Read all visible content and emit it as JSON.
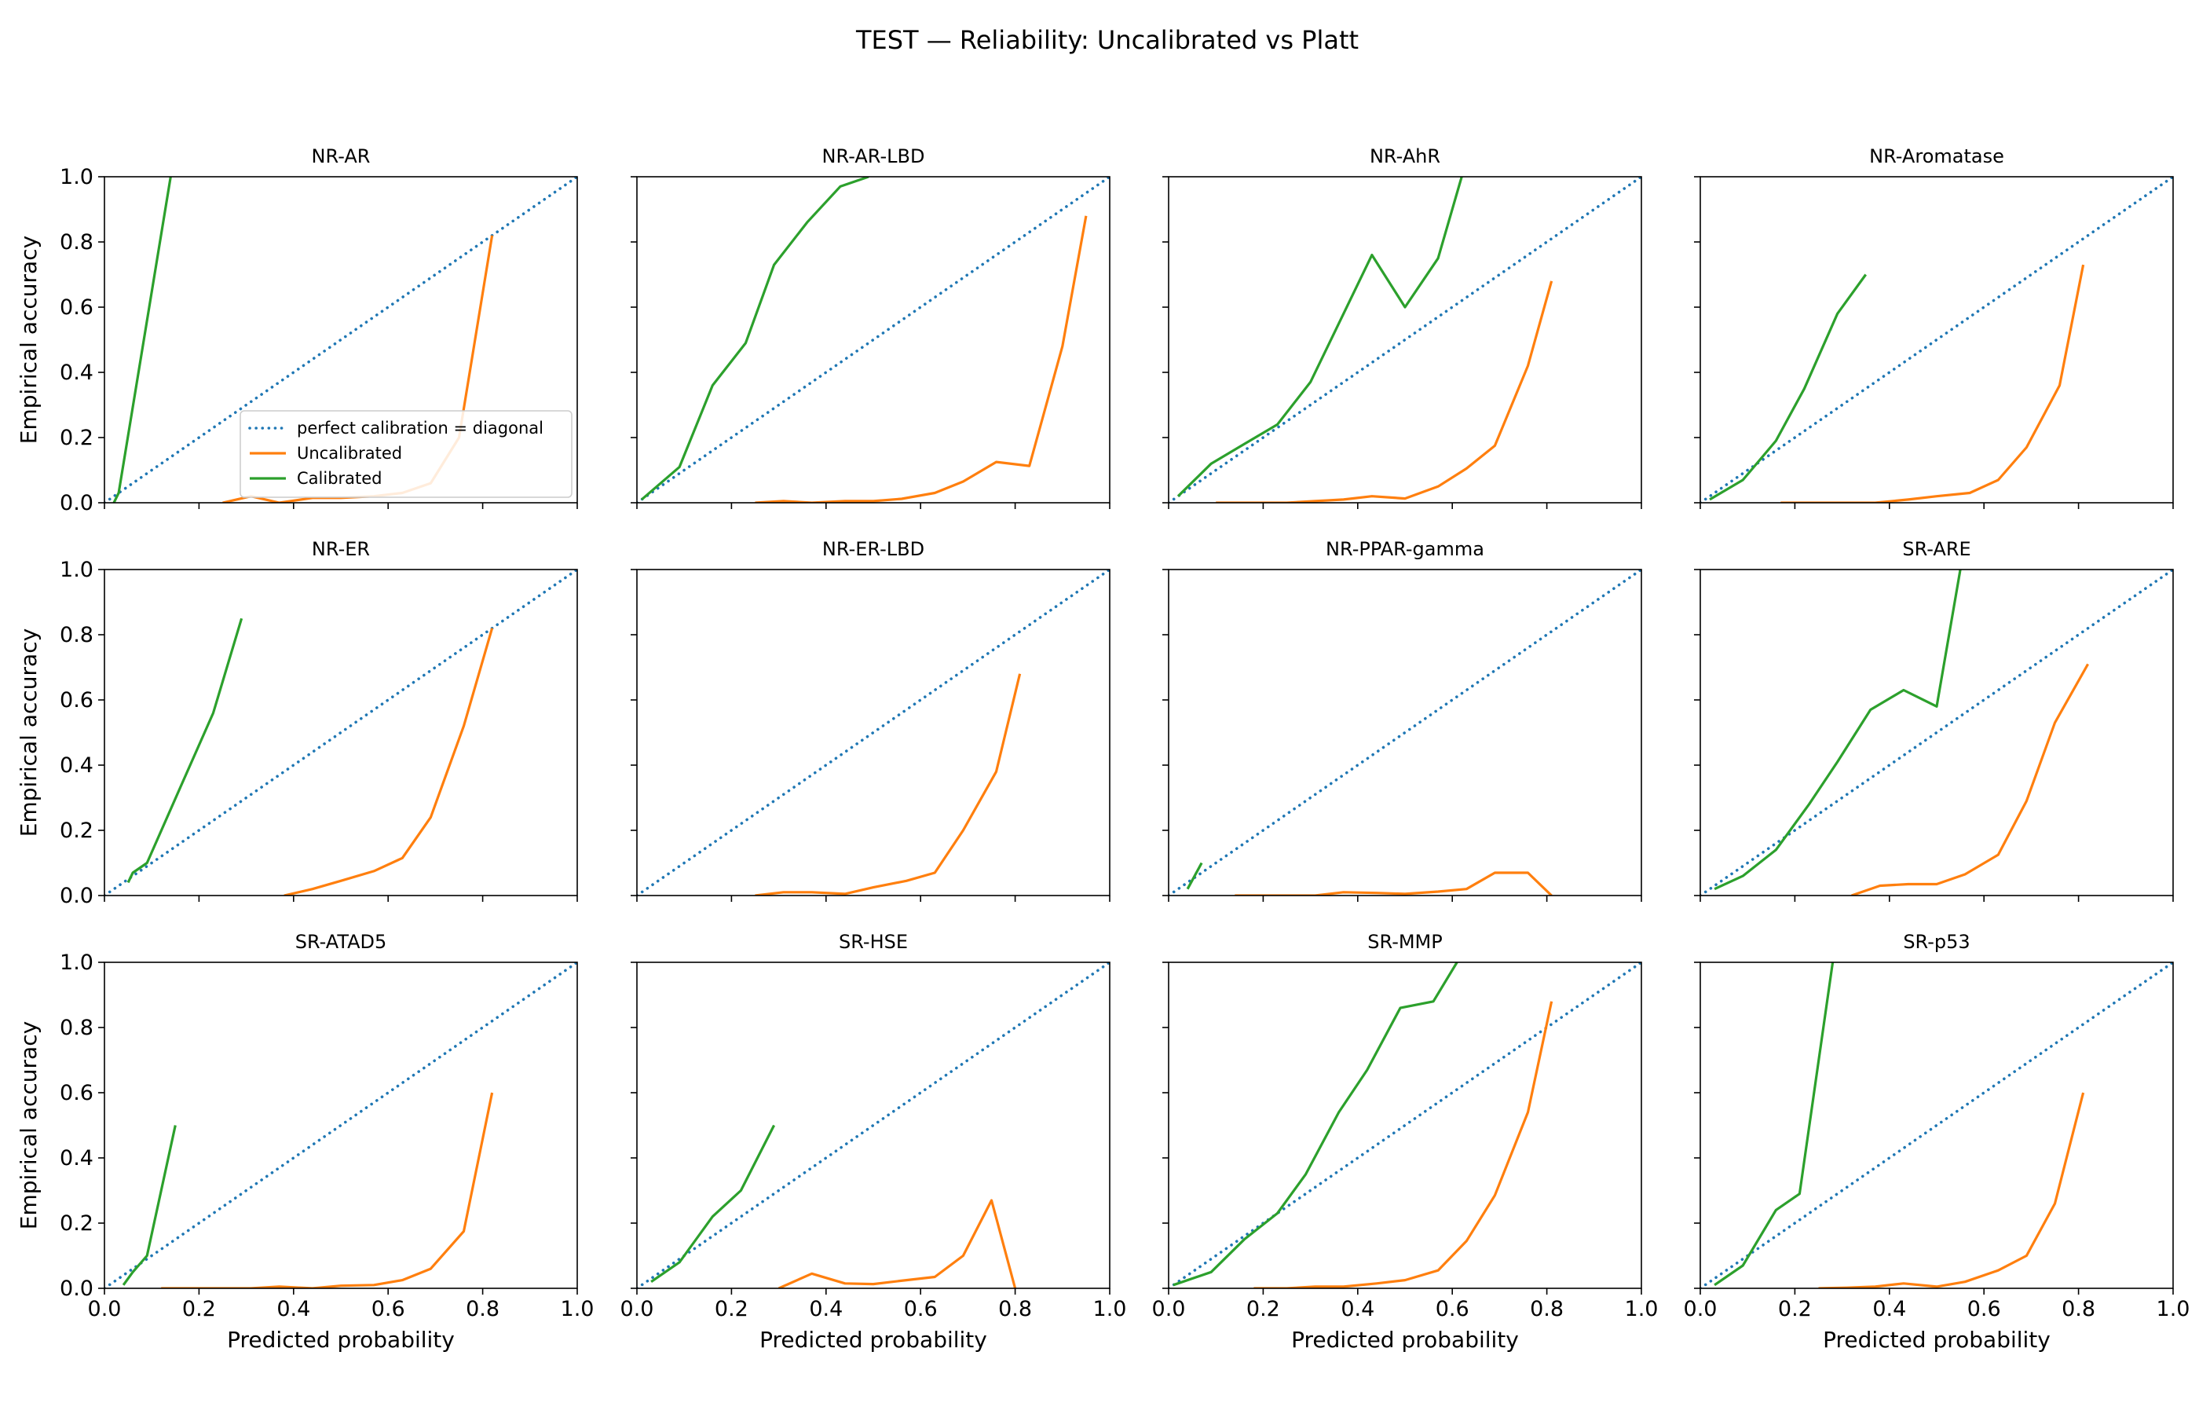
{
  "title": "TEST — Reliability: Uncalibrated vs Platt",
  "xlabel": "Predicted probability",
  "ylabel": "Empirical accuracy",
  "colors": {
    "diagonal": "#1f77b4",
    "uncalibrated": "#ff7f0e",
    "calibrated": "#2ca02c"
  },
  "legend": {
    "placement": "lower-right of first panel",
    "entries": [
      "perfect calibration = diagonal",
      "Uncalibrated",
      "Calibrated"
    ]
  },
  "chart_data": {
    "type": "line",
    "grid": false,
    "layout": "3x4 small multiples",
    "xlim": [
      0,
      1
    ],
    "ylim": [
      0,
      1
    ],
    "xticks": [
      "0.0",
      "0.2",
      "0.4",
      "0.6",
      "0.8",
      "1.0"
    ],
    "yticks": [
      "0.0",
      "0.2",
      "0.4",
      "0.6",
      "0.8",
      "1.0"
    ],
    "series_names": [
      "perfect calibration = diagonal",
      "Uncalibrated",
      "Calibrated"
    ],
    "panels": [
      {
        "title": "NR-AR",
        "diagonal": [
          [
            0,
            0
          ],
          [
            1,
            1
          ]
        ],
        "uncalibrated": [
          [
            0.25,
            0.0
          ],
          [
            0.31,
            0.02
          ],
          [
            0.37,
            0.0
          ],
          [
            0.44,
            0.015
          ],
          [
            0.5,
            0.015
          ],
          [
            0.57,
            0.02
          ],
          [
            0.63,
            0.03
          ],
          [
            0.69,
            0.06
          ],
          [
            0.75,
            0.2
          ],
          [
            0.82,
            0.82
          ]
        ],
        "calibrated": [
          [
            0.02,
            0.0
          ],
          [
            0.03,
            0.03
          ],
          [
            0.14,
            1.0
          ]
        ]
      },
      {
        "title": "NR-AR-LBD",
        "diagonal": [
          [
            0,
            0
          ],
          [
            1,
            1
          ]
        ],
        "uncalibrated": [
          [
            0.25,
            0.0
          ],
          [
            0.31,
            0.005
          ],
          [
            0.37,
            0.0
          ],
          [
            0.44,
            0.005
          ],
          [
            0.5,
            0.005
          ],
          [
            0.56,
            0.012
          ],
          [
            0.63,
            0.03
          ],
          [
            0.69,
            0.065
          ],
          [
            0.76,
            0.125
          ],
          [
            0.83,
            0.113
          ],
          [
            0.9,
            0.48
          ],
          [
            0.95,
            0.88
          ]
        ],
        "calibrated": [
          [
            0.01,
            0.01
          ],
          [
            0.09,
            0.11
          ],
          [
            0.16,
            0.36
          ],
          [
            0.23,
            0.49
          ],
          [
            0.29,
            0.73
          ],
          [
            0.36,
            0.86
          ],
          [
            0.43,
            0.97
          ],
          [
            0.49,
            1.0
          ]
        ]
      },
      {
        "title": "NR-AhR",
        "diagonal": [
          [
            0,
            0
          ],
          [
            1,
            1
          ]
        ],
        "uncalibrated": [
          [
            0.1,
            0.0
          ],
          [
            0.18,
            0.0
          ],
          [
            0.25,
            0.0
          ],
          [
            0.31,
            0.005
          ],
          [
            0.37,
            0.01
          ],
          [
            0.43,
            0.02
          ],
          [
            0.5,
            0.013
          ],
          [
            0.57,
            0.05
          ],
          [
            0.63,
            0.105
          ],
          [
            0.69,
            0.175
          ],
          [
            0.76,
            0.42
          ],
          [
            0.81,
            0.68
          ]
        ],
        "calibrated": [
          [
            0.02,
            0.02
          ],
          [
            0.09,
            0.12
          ],
          [
            0.16,
            0.18
          ],
          [
            0.23,
            0.24
          ],
          [
            0.3,
            0.37
          ],
          [
            0.36,
            0.55
          ],
          [
            0.43,
            0.76
          ],
          [
            0.5,
            0.6
          ],
          [
            0.57,
            0.75
          ],
          [
            0.62,
            1.0
          ]
        ]
      },
      {
        "title": "NR-Aromatase",
        "diagonal": [
          [
            0,
            0
          ],
          [
            1,
            1
          ]
        ],
        "uncalibrated": [
          [
            0.17,
            0.0
          ],
          [
            0.25,
            0.0
          ],
          [
            0.31,
            0.0
          ],
          [
            0.37,
            0.0
          ],
          [
            0.44,
            0.01
          ],
          [
            0.5,
            0.02
          ],
          [
            0.57,
            0.03
          ],
          [
            0.63,
            0.07
          ],
          [
            0.69,
            0.17
          ],
          [
            0.76,
            0.36
          ],
          [
            0.81,
            0.73
          ]
        ],
        "calibrated": [
          [
            0.02,
            0.01
          ],
          [
            0.09,
            0.07
          ],
          [
            0.16,
            0.19
          ],
          [
            0.22,
            0.35
          ],
          [
            0.29,
            0.58
          ],
          [
            0.35,
            0.7
          ]
        ]
      },
      {
        "title": "NR-ER",
        "diagonal": [
          [
            0,
            0
          ],
          [
            1,
            1
          ]
        ],
        "uncalibrated": [
          [
            0.38,
            0.0
          ],
          [
            0.44,
            0.02
          ],
          [
            0.5,
            0.045
          ],
          [
            0.57,
            0.075
          ],
          [
            0.63,
            0.115
          ],
          [
            0.69,
            0.24
          ],
          [
            0.76,
            0.52
          ],
          [
            0.82,
            0.82
          ]
        ],
        "calibrated": [
          [
            0.05,
            0.04
          ],
          [
            0.06,
            0.07
          ],
          [
            0.09,
            0.1
          ],
          [
            0.16,
            0.33
          ],
          [
            0.23,
            0.56
          ],
          [
            0.29,
            0.85
          ]
        ]
      },
      {
        "title": "NR-ER-LBD",
        "diagonal": [
          [
            0,
            0
          ],
          [
            1,
            1
          ]
        ],
        "uncalibrated": [
          [
            0.25,
            0.0
          ],
          [
            0.31,
            0.01
          ],
          [
            0.37,
            0.01
          ],
          [
            0.44,
            0.005
          ],
          [
            0.5,
            0.025
          ],
          [
            0.57,
            0.045
          ],
          [
            0.63,
            0.07
          ],
          [
            0.69,
            0.2
          ],
          [
            0.76,
            0.38
          ],
          [
            0.81,
            0.68
          ]
        ],
        "calibrated": []
      },
      {
        "title": "NR-PPAR-gamma",
        "diagonal": [
          [
            0,
            0
          ],
          [
            1,
            1
          ]
        ],
        "uncalibrated": [
          [
            0.14,
            0.0
          ],
          [
            0.25,
            0.0
          ],
          [
            0.31,
            0.0
          ],
          [
            0.37,
            0.01
          ],
          [
            0.44,
            0.008
          ],
          [
            0.5,
            0.005
          ],
          [
            0.57,
            0.012
          ],
          [
            0.63,
            0.02
          ],
          [
            0.69,
            0.07
          ],
          [
            0.76,
            0.07
          ],
          [
            0.81,
            0.0
          ]
        ],
        "calibrated": [
          [
            0.04,
            0.02
          ],
          [
            0.07,
            0.1
          ]
        ]
      },
      {
        "title": "SR-ARE",
        "diagonal": [
          [
            0,
            0
          ],
          [
            1,
            1
          ]
        ],
        "uncalibrated": [
          [
            0.32,
            0.0
          ],
          [
            0.38,
            0.03
          ],
          [
            0.44,
            0.035
          ],
          [
            0.5,
            0.035
          ],
          [
            0.56,
            0.065
          ],
          [
            0.63,
            0.125
          ],
          [
            0.69,
            0.29
          ],
          [
            0.75,
            0.53
          ],
          [
            0.82,
            0.71
          ]
        ],
        "calibrated": [
          [
            0.03,
            0.02
          ],
          [
            0.09,
            0.06
          ],
          [
            0.16,
            0.14
          ],
          [
            0.23,
            0.28
          ],
          [
            0.29,
            0.41
          ],
          [
            0.36,
            0.57
          ],
          [
            0.43,
            0.63
          ],
          [
            0.5,
            0.58
          ],
          [
            0.55,
            1.0
          ]
        ]
      },
      {
        "title": "SR-ATAD5",
        "diagonal": [
          [
            0,
            0
          ],
          [
            1,
            1
          ]
        ],
        "uncalibrated": [
          [
            0.12,
            0.0
          ],
          [
            0.31,
            0.0
          ],
          [
            0.37,
            0.005
          ],
          [
            0.44,
            0.0
          ],
          [
            0.5,
            0.008
          ],
          [
            0.57,
            0.01
          ],
          [
            0.63,
            0.025
          ],
          [
            0.69,
            0.06
          ],
          [
            0.76,
            0.175
          ],
          [
            0.82,
            0.6
          ]
        ],
        "calibrated": [
          [
            0.04,
            0.01
          ],
          [
            0.06,
            0.05
          ],
          [
            0.09,
            0.1
          ],
          [
            0.15,
            0.5
          ]
        ]
      },
      {
        "title": "SR-HSE",
        "diagonal": [
          [
            0,
            0
          ],
          [
            1,
            1
          ]
        ],
        "uncalibrated": [
          [
            0.3,
            0.0
          ],
          [
            0.37,
            0.045
          ],
          [
            0.44,
            0.015
          ],
          [
            0.5,
            0.013
          ],
          [
            0.57,
            0.025
          ],
          [
            0.63,
            0.035
          ],
          [
            0.69,
            0.1
          ],
          [
            0.75,
            0.27
          ],
          [
            0.8,
            0.0
          ]
        ],
        "calibrated": [
          [
            0.03,
            0.02
          ],
          [
            0.09,
            0.08
          ],
          [
            0.16,
            0.22
          ],
          [
            0.22,
            0.3
          ],
          [
            0.29,
            0.5
          ]
        ]
      },
      {
        "title": "SR-MMP",
        "diagonal": [
          [
            0,
            0
          ],
          [
            1,
            1
          ]
        ],
        "uncalibrated": [
          [
            0.18,
            0.0
          ],
          [
            0.25,
            0.0
          ],
          [
            0.31,
            0.005
          ],
          [
            0.37,
            0.005
          ],
          [
            0.44,
            0.015
          ],
          [
            0.5,
            0.025
          ],
          [
            0.57,
            0.055
          ],
          [
            0.63,
            0.145
          ],
          [
            0.69,
            0.285
          ],
          [
            0.76,
            0.54
          ],
          [
            0.81,
            0.88
          ]
        ],
        "calibrated": [
          [
            0.01,
            0.01
          ],
          [
            0.09,
            0.05
          ],
          [
            0.16,
            0.15
          ],
          [
            0.23,
            0.23
          ],
          [
            0.29,
            0.35
          ],
          [
            0.36,
            0.54
          ],
          [
            0.42,
            0.67
          ],
          [
            0.49,
            0.86
          ],
          [
            0.56,
            0.88
          ],
          [
            0.61,
            1.0
          ]
        ]
      },
      {
        "title": "SR-p53",
        "diagonal": [
          [
            0,
            0
          ],
          [
            1,
            1
          ]
        ],
        "uncalibrated": [
          [
            0.25,
            0.0
          ],
          [
            0.31,
            0.002
          ],
          [
            0.37,
            0.005
          ],
          [
            0.43,
            0.015
          ],
          [
            0.5,
            0.005
          ],
          [
            0.56,
            0.02
          ],
          [
            0.63,
            0.055
          ],
          [
            0.69,
            0.1
          ],
          [
            0.75,
            0.26
          ],
          [
            0.81,
            0.6
          ]
        ],
        "calibrated": [
          [
            0.03,
            0.01
          ],
          [
            0.09,
            0.07
          ],
          [
            0.16,
            0.24
          ],
          [
            0.21,
            0.29
          ],
          [
            0.28,
            1.0
          ]
        ]
      }
    ]
  }
}
